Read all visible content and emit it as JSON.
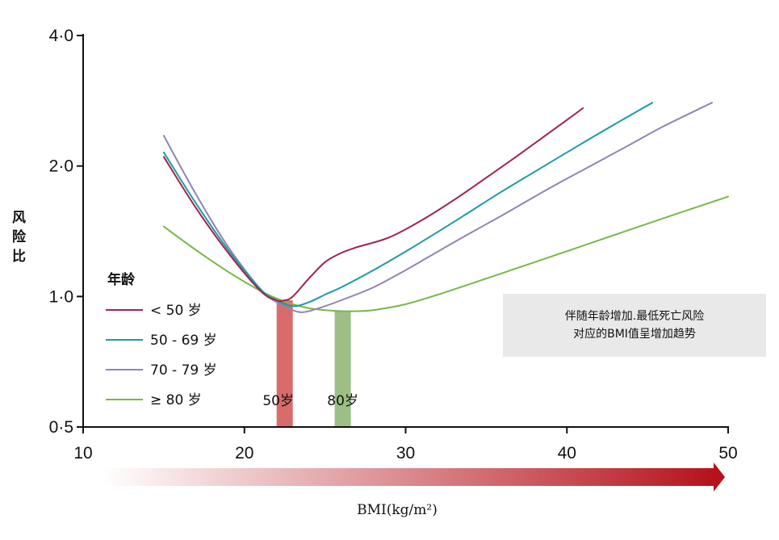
{
  "chart_data": {
    "type": "line",
    "ylabel": "风险比",
    "xlabel": "BMI(kg/m²)",
    "xlim": [
      10,
      50
    ],
    "ylim": [
      0.5,
      4.0
    ],
    "y_scale": "log",
    "x_ticks": [
      "10",
      "20",
      "30",
      "40",
      "50"
    ],
    "y_ticks": [
      {
        "value": 0.5,
        "label": "0·5"
      },
      {
        "value": 1.0,
        "label": "1·0"
      },
      {
        "value": 2.0,
        "label": "2·0"
      },
      {
        "value": 4.0,
        "label": "4·0"
      }
    ],
    "legend_title": "年龄",
    "legend_position": "left",
    "series": [
      {
        "name": "< 50 岁",
        "color": "#a0244a",
        "x": [
          15,
          17,
          19,
          21,
          22,
          22.5,
          23,
          24,
          25,
          26,
          27,
          29,
          31,
          33,
          35,
          37,
          39,
          41
        ],
        "y": [
          2.1,
          1.6,
          1.26,
          1.03,
          0.98,
          0.98,
          1.0,
          1.1,
          1.2,
          1.26,
          1.3,
          1.37,
          1.5,
          1.67,
          1.88,
          2.12,
          2.4,
          2.72
        ]
      },
      {
        "name": "50 - 69 岁",
        "color": "#1e9aa8",
        "x": [
          15,
          17,
          19,
          21,
          22,
          23,
          24,
          25,
          26,
          28,
          30,
          32,
          34,
          36,
          38,
          40,
          42,
          45.3
        ],
        "y": [
          2.15,
          1.64,
          1.28,
          1.04,
          0.98,
          0.95,
          0.97,
          1.01,
          1.05,
          1.15,
          1.27,
          1.41,
          1.57,
          1.75,
          1.94,
          2.15,
          2.38,
          2.8
        ]
      },
      {
        "name": "70 - 79 岁",
        "color": "#9085b2",
        "x": [
          15,
          17,
          19,
          21,
          22,
          23,
          23.5,
          24,
          25,
          26,
          28,
          30,
          32,
          34,
          36,
          38,
          40,
          42,
          44,
          46,
          49
        ],
        "y": [
          2.35,
          1.72,
          1.3,
          1.04,
          0.97,
          0.93,
          0.92,
          0.925,
          0.95,
          0.98,
          1.05,
          1.15,
          1.27,
          1.4,
          1.54,
          1.7,
          1.87,
          2.05,
          2.25,
          2.47,
          2.8
        ]
      },
      {
        "name": "≥ 80 岁",
        "color": "#7ab648",
        "x": [
          15,
          17,
          19,
          21,
          22,
          23,
          24,
          25,
          26,
          27,
          28,
          30,
          32,
          35,
          38,
          41,
          44,
          47,
          50
        ],
        "y": [
          1.45,
          1.28,
          1.14,
          1.03,
          0.99,
          0.96,
          0.94,
          0.93,
          0.925,
          0.925,
          0.93,
          0.96,
          1.01,
          1.1,
          1.2,
          1.31,
          1.43,
          1.56,
          1.7
        ]
      }
    ],
    "bands": [
      {
        "label": "50岁",
        "x_from": 22,
        "x_to": 23,
        "color": "#d96b6b"
      },
      {
        "label": "80岁",
        "x_from": 25.6,
        "x_to": 26.6,
        "color": "#9cbf86"
      }
    ],
    "annotation": {
      "line1": "伴随年龄增加.最低死亡风险",
      "line2": "对应的BMI值呈增加趋势"
    },
    "gradient_arrow": {
      "from_color": "#ffffff",
      "to_color": "#b5121b"
    }
  }
}
